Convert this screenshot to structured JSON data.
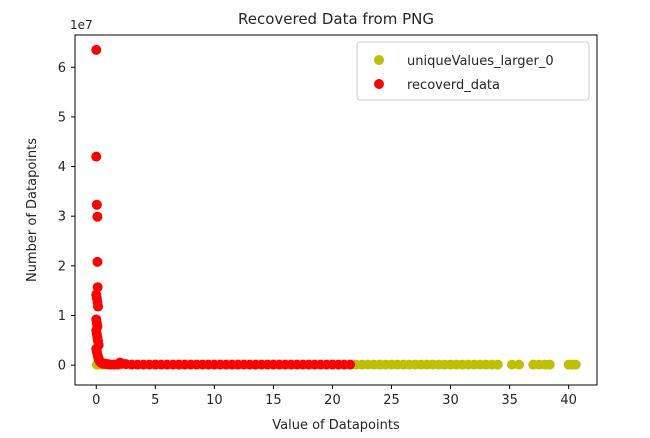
{
  "chart_data": {
    "type": "scatter",
    "title": "Recovered Data from PNG",
    "xlabel": "Value of Datapoints",
    "ylabel": "Number of Datapoints",
    "y_offset_label": "1e7",
    "xlim": [
      -1.8,
      42.4
    ],
    "ylim": [
      -0.4,
      6.65
    ],
    "y_unit_multiplier": 10000000,
    "x_ticks": [
      0,
      5,
      10,
      15,
      20,
      25,
      30,
      35,
      40
    ],
    "x_tick_labels": [
      "0",
      "5",
      "10",
      "15",
      "20",
      "25",
      "30",
      "35",
      "40"
    ],
    "y_ticks": [
      0,
      1,
      2,
      3,
      4,
      5,
      6
    ],
    "y_tick_labels": [
      "0",
      "1",
      "2",
      "3",
      "4",
      "5",
      "6"
    ],
    "grid": false,
    "legend_position": "upper right",
    "series": [
      {
        "name": "uniqueValues_larger_0",
        "color": "#bfbf00",
        "x": [
          0.05,
          0.1,
          0.2,
          0.3,
          0.5,
          1,
          2,
          3,
          5,
          7,
          10,
          12,
          15,
          18,
          20,
          21.5,
          22,
          22.5,
          23,
          23.5,
          24,
          24.5,
          25,
          25.5,
          26,
          26.5,
          27,
          27.5,
          28,
          28.5,
          29,
          29.5,
          30,
          30.5,
          31,
          31.5,
          32,
          32.5,
          33,
          33.5,
          34,
          35.2,
          35.8,
          37,
          37.5,
          38,
          38.4,
          40,
          40.3,
          40.6
        ],
        "y": [
          0.01,
          0.01,
          0.01,
          0.01,
          0.01,
          0.01,
          0.01,
          0.01,
          0.01,
          0.01,
          0.01,
          0.01,
          0.01,
          0.01,
          0.01,
          0.01,
          0.01,
          0.01,
          0.01,
          0.01,
          0.01,
          0.01,
          0.01,
          0.01,
          0.01,
          0.01,
          0.01,
          0.01,
          0.01,
          0.01,
          0.01,
          0.01,
          0.01,
          0.01,
          0.01,
          0.01,
          0.01,
          0.01,
          0.01,
          0.01,
          0.01,
          0.01,
          0.01,
          0.01,
          0.01,
          0.01,
          0.01,
          0.01,
          0.01,
          0.01
        ]
      },
      {
        "name": "recoverd_data",
        "color": "#ff0000",
        "x": [
          0.0,
          0.0,
          0.05,
          0.1,
          0.1,
          0.12,
          0.0,
          0.05,
          0.1,
          0.15,
          0.0,
          0.05,
          0.1,
          0.0,
          0.05,
          0.1,
          0.15,
          0.2,
          0.0,
          0.05,
          0.1,
          0.15,
          0.2,
          0.25,
          0.3,
          0.35,
          0.4,
          0.5,
          0.6,
          0.7,
          0.8,
          1.0,
          1.2,
          1.5,
          1.8,
          2.0,
          2.2,
          2.5,
          3,
          3.5,
          4,
          4.5,
          5,
          5.5,
          6,
          6.5,
          7,
          7.5,
          8,
          8.5,
          9,
          9.5,
          10,
          10.5,
          11,
          11.5,
          12,
          12.5,
          13,
          13.5,
          14,
          14.5,
          15,
          15.5,
          16,
          16.5,
          17,
          17.5,
          18,
          18.5,
          19,
          19.5,
          20,
          20.5,
          21,
          21.5
        ],
        "y": [
          6.35,
          4.2,
          3.23,
          2.99,
          2.08,
          1.57,
          1.42,
          1.35,
          1.27,
          1.18,
          0.92,
          0.85,
          0.78,
          0.7,
          0.62,
          0.55,
          0.48,
          0.4,
          0.33,
          0.27,
          0.22,
          0.17,
          0.13,
          0.1,
          0.08,
          0.06,
          0.05,
          0.04,
          0.03,
          0.03,
          0.02,
          0.02,
          0.01,
          0.01,
          0.01,
          0.05,
          0.03,
          0.02,
          0.01,
          0.01,
          0.01,
          0.01,
          0.01,
          0.01,
          0.01,
          0.01,
          0.01,
          0.01,
          0.01,
          0.01,
          0.01,
          0.01,
          0.01,
          0.01,
          0.01,
          0.01,
          0.01,
          0.01,
          0.01,
          0.01,
          0.01,
          0.01,
          0.01,
          0.01,
          0.01,
          0.01,
          0.01,
          0.01,
          0.01,
          0.01,
          0.01,
          0.01,
          0.01,
          0.01,
          0.01,
          0.01
        ]
      }
    ]
  }
}
